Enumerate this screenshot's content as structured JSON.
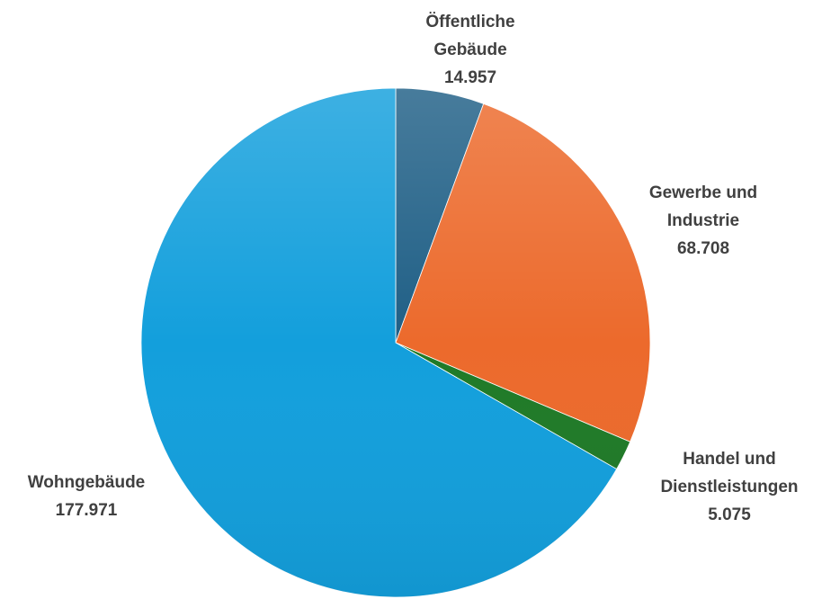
{
  "chart_data": {
    "type": "pie",
    "title": "",
    "start_angle_deg": 0,
    "direction": "clockwise",
    "slices": [
      {
        "name": "Öffentliche Gebäude",
        "label_lines": [
          "Öffentliche",
          "Gebäude"
        ],
        "value": 14957,
        "value_label": "14.957",
        "color": "#1f5f86"
      },
      {
        "name": "Gewerbe und Industrie",
        "label_lines": [
          "Gewerbe und",
          "Industrie"
        ],
        "value": 68708,
        "value_label": "68.708",
        "color": "#ec6a2c"
      },
      {
        "name": "Handel und Dienstleistungen",
        "label_lines": [
          "Handel und",
          "Dienstleistungen"
        ],
        "value": 5075,
        "value_label": "5.075",
        "color": "#1f7a27"
      },
      {
        "name": "Wohngebäude",
        "label_lines": [
          "Wohngebäude"
        ],
        "value": 177971,
        "value_label": "177.971",
        "color": "#139fdc"
      }
    ]
  }
}
